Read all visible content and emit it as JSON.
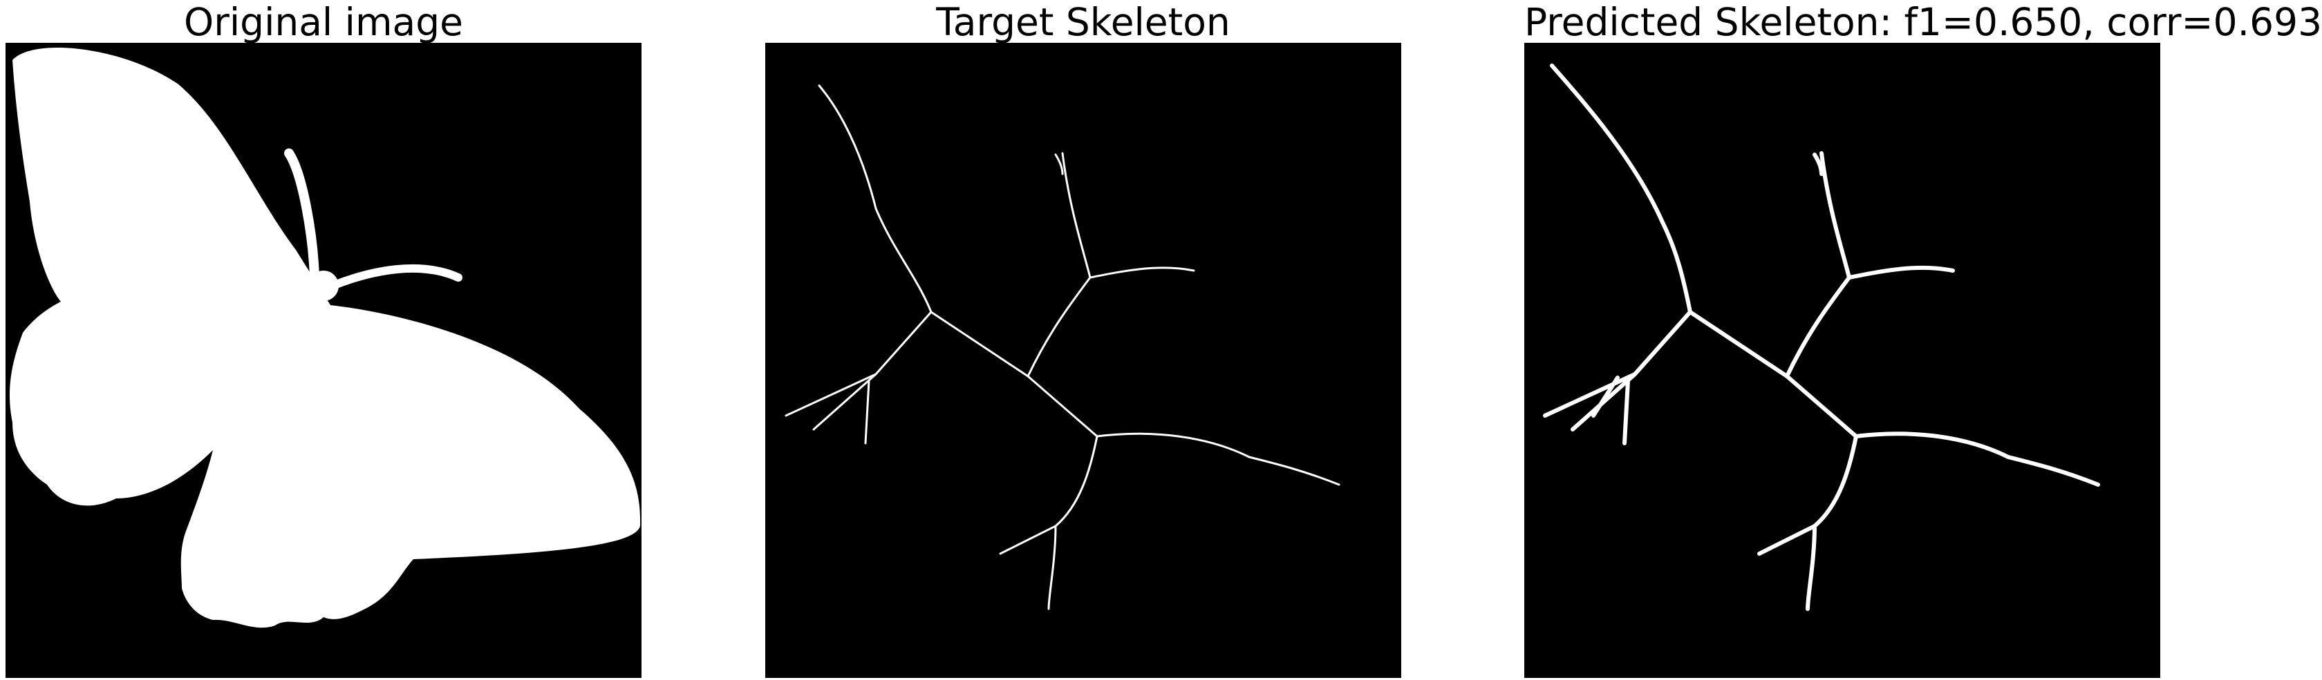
{
  "panels": [
    {
      "title": "Original image",
      "content": "butterfly-silhouette",
      "background": "#000000",
      "foreground": "#ffffff"
    },
    {
      "title": "Target Skeleton",
      "content": "skeleton-lines",
      "background": "#000000",
      "foreground": "#ffffff"
    },
    {
      "title": "Predicted Skeleton: f1=0.650, corr=0.693",
      "content": "skeleton-lines-thick",
      "background": "#000000",
      "foreground": "#ffffff"
    }
  ]
}
